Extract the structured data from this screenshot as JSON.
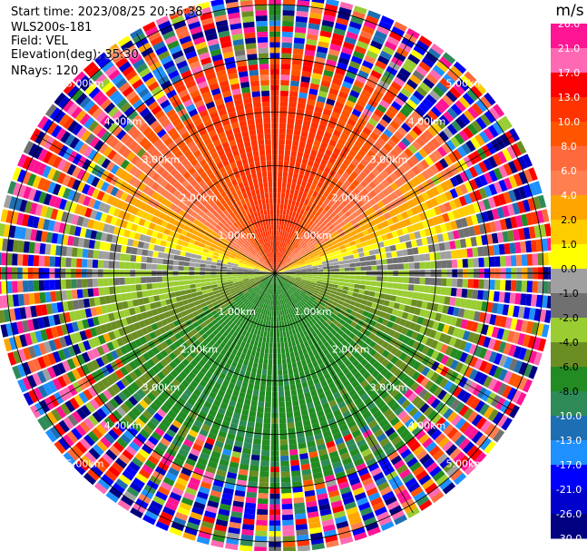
{
  "header": {
    "start_time": "Start time: 2023/08/25 20:36:38",
    "instrument": "WLS200s-181",
    "field": "Field: VEL",
    "elevation": "Elevation(deg): 35.30",
    "nrays": "NRays: 120"
  },
  "chart_data": {
    "type": "heatmap",
    "projection": "polar-ppi",
    "title": "",
    "range_rings_km": [
      1.0,
      2.0,
      3.0,
      4.0,
      5.0
    ],
    "range_ring_labels": [
      "1.00km",
      "2.00km",
      "3.00km",
      "4.00km",
      "5.00km"
    ],
    "max_range_km": 5.15,
    "n_rays": 120,
    "field": "VEL",
    "units": "m/s",
    "colorbar": {
      "label": "m/s",
      "ticks": [
        "26.0",
        "21.0",
        "17.0",
        "13.0",
        "10.0",
        "8.0",
        "6.0",
        "4.0",
        "2.0",
        "1.0",
        "0.0",
        "-1.0",
        "-2.0",
        "-4.0",
        "-6.0",
        "-8.0",
        "-10.0",
        "-13.0",
        "-17.0",
        "-21.0",
        "-26.0",
        "-30.0"
      ],
      "colors": [
        "#ff1493",
        "#ff69b4",
        "#ff0000",
        "#ff3300",
        "#ff5500",
        "#ff6a3d",
        "#ff7f50",
        "#ffa500",
        "#ffcc00",
        "#ffff00",
        "#a0a0a0",
        "#707070",
        "#9acd32",
        "#6b8e23",
        "#228b22",
        "#2e8b57",
        "#1e6eb4",
        "#1e90ff",
        "#0000ff",
        "#0000cd",
        "#000080",
        "#191970"
      ]
    },
    "velocity_pattern": {
      "inner_range_km": 3.7,
      "north_sector_velocity": 10.0,
      "northeast_velocity": 4.0,
      "south_sector_velocity": -8.0,
      "southwest_velocity": -4.0,
      "outer_band": "noisy"
    }
  }
}
